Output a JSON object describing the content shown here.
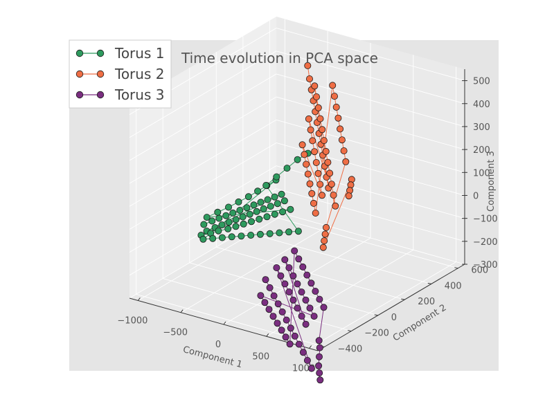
{
  "chart_data": {
    "type": "scatter",
    "projection": "3d",
    "title": "Time evolution in PCA space",
    "xlabel": "Component 1",
    "ylabel": "Component 2",
    "zlabel": "Component 3",
    "xlim": [
      -1100,
      1100
    ],
    "ylim": [
      -450,
      650
    ],
    "zlim": [
      -300,
      550
    ],
    "x_ticks": [
      -1000,
      -500,
      0,
      500,
      1000
    ],
    "y_ticks": [
      -400,
      -200,
      0,
      200,
      400,
      600
    ],
    "z_ticks": [
      -300,
      -200,
      -100,
      0,
      100,
      200,
      300,
      400,
      500
    ],
    "x_tick_labels": [
      "−1000",
      "−500",
      "0",
      "500",
      "1000"
    ],
    "y_tick_labels": [
      "−400",
      "−200",
      "0",
      "200",
      "400",
      "600"
    ],
    "z_tick_labels": [
      "−300",
      "−200",
      "−100",
      "0",
      "100",
      "200",
      "300",
      "400",
      "500"
    ],
    "grid": true,
    "legend_position": "top-left",
    "series": [
      {
        "name": "Torus 1",
        "color": "#2e9a5e",
        "points": [
          [
            -700,
            -150,
            -40
          ],
          [
            -650,
            -120,
            -30
          ],
          [
            -600,
            -100,
            -20
          ],
          [
            -550,
            -80,
            -10
          ],
          [
            -500,
            -60,
            0
          ],
          [
            -450,
            -40,
            10
          ],
          [
            -400,
            -20,
            20
          ],
          [
            -350,
            0,
            30
          ],
          [
            -300,
            20,
            40
          ],
          [
            -250,
            40,
            50
          ],
          [
            -200,
            60,
            60
          ],
          [
            -150,
            80,
            70
          ],
          [
            -650,
            -160,
            -60
          ],
          [
            -600,
            -130,
            -50
          ],
          [
            -550,
            -110,
            -40
          ],
          [
            -500,
            -90,
            -30
          ],
          [
            -450,
            -70,
            -20
          ],
          [
            -400,
            -50,
            -10
          ],
          [
            -350,
            -30,
            0
          ],
          [
            -300,
            -10,
            10
          ],
          [
            -250,
            10,
            20
          ],
          [
            -200,
            30,
            30
          ],
          [
            -150,
            50,
            40
          ],
          [
            -100,
            70,
            50
          ],
          [
            -700,
            -170,
            -80
          ],
          [
            -620,
            -150,
            -70
          ],
          [
            -560,
            -130,
            -60
          ],
          [
            -480,
            -110,
            -50
          ],
          [
            -420,
            -90,
            -40
          ],
          [
            -360,
            -70,
            -30
          ],
          [
            -300,
            -50,
            -20
          ],
          [
            -240,
            -30,
            -10
          ],
          [
            -180,
            -10,
            0
          ],
          [
            -120,
            10,
            10
          ],
          [
            -60,
            30,
            20
          ],
          [
            0,
            50,
            30
          ],
          [
            -680,
            -140,
            -10
          ],
          [
            -600,
            -110,
            10
          ],
          [
            -520,
            -80,
            30
          ],
          [
            -450,
            -50,
            50
          ],
          [
            -380,
            -20,
            70
          ],
          [
            -320,
            10,
            90
          ],
          [
            -260,
            40,
            110
          ],
          [
            -200,
            70,
            130
          ],
          [
            -660,
            -180,
            -90
          ],
          [
            -580,
            -160,
            -85
          ],
          [
            -500,
            -140,
            -80
          ],
          [
            -420,
            -120,
            -75
          ],
          [
            -340,
            -100,
            -70
          ],
          [
            -260,
            -80,
            -65
          ],
          [
            -180,
            -60,
            -60
          ],
          [
            -100,
            -40,
            -55
          ],
          [
            -20,
            -20,
            -50
          ],
          [
            60,
            0,
            -45
          ],
          [
            140,
            20,
            -40
          ],
          [
            -300,
            60,
            100
          ],
          [
            -240,
            100,
            130
          ],
          [
            -180,
            140,
            160
          ],
          [
            -120,
            180,
            190
          ],
          [
            -60,
            220,
            210
          ]
        ]
      },
      {
        "name": "Torus 2",
        "color": "#ef6e45",
        "points": [
          [
            -500,
            500,
            450
          ],
          [
            -400,
            450,
            420
          ],
          [
            -300,
            400,
            400
          ],
          [
            -200,
            350,
            380
          ],
          [
            -100,
            300,
            360
          ],
          [
            0,
            250,
            340
          ],
          [
            100,
            200,
            320
          ],
          [
            200,
            150,
            300
          ],
          [
            300,
            100,
            280
          ],
          [
            400,
            50,
            260
          ],
          [
            500,
            0,
            240
          ],
          [
            600,
            -50,
            220
          ],
          [
            -450,
            520,
            360
          ],
          [
            -350,
            470,
            340
          ],
          [
            -250,
            420,
            320
          ],
          [
            -150,
            370,
            300
          ],
          [
            -50,
            320,
            280
          ],
          [
            50,
            270,
            260
          ],
          [
            150,
            220,
            240
          ],
          [
            250,
            170,
            220
          ],
          [
            350,
            120,
            200
          ],
          [
            450,
            70,
            180
          ],
          [
            550,
            20,
            160
          ],
          [
            650,
            -30,
            140
          ],
          [
            -300,
            380,
            280
          ],
          [
            -200,
            330,
            260
          ],
          [
            -100,
            280,
            240
          ],
          [
            0,
            230,
            220
          ],
          [
            100,
            180,
            200
          ],
          [
            200,
            130,
            180
          ],
          [
            300,
            80,
            160
          ],
          [
            400,
            30,
            140
          ],
          [
            -250,
            300,
            200
          ],
          [
            -150,
            250,
            185
          ],
          [
            -50,
            200,
            170
          ],
          [
            50,
            150,
            155
          ],
          [
            150,
            100,
            140
          ],
          [
            250,
            50,
            125
          ],
          [
            350,
            0,
            110
          ],
          [
            450,
            -50,
            95
          ],
          [
            -100,
            430,
            430
          ],
          [
            0,
            380,
            410
          ],
          [
            100,
            330,
            390
          ],
          [
            200,
            280,
            370
          ],
          [
            300,
            230,
            350
          ],
          [
            400,
            180,
            330
          ],
          [
            500,
            130,
            310
          ],
          [
            600,
            80,
            290
          ],
          [
            620,
            -80,
            60
          ],
          [
            640,
            -100,
            40
          ],
          [
            660,
            -120,
            20
          ],
          [
            680,
            -140,
            0
          ],
          [
            700,
            60,
            230
          ],
          [
            720,
            40,
            215
          ],
          [
            740,
            20,
            200
          ],
          [
            760,
            0,
            185
          ]
        ]
      },
      {
        "name": "Torus 3",
        "color": "#7a2e80",
        "points": [
          [
            100,
            -200,
            -180
          ],
          [
            180,
            -220,
            -200
          ],
          [
            260,
            -240,
            -220
          ],
          [
            340,
            -260,
            -240
          ],
          [
            420,
            -280,
            -260
          ],
          [
            500,
            -300,
            -280
          ],
          [
            580,
            -320,
            -300
          ],
          [
            660,
            -340,
            -320
          ],
          [
            740,
            -360,
            -340
          ],
          [
            820,
            -380,
            -360
          ],
          [
            900,
            -400,
            -380
          ],
          [
            980,
            -420,
            -400
          ],
          [
            150,
            -150,
            -140
          ],
          [
            230,
            -170,
            -160
          ],
          [
            310,
            -190,
            -180
          ],
          [
            390,
            -210,
            -200
          ],
          [
            470,
            -230,
            -220
          ],
          [
            550,
            -250,
            -240
          ],
          [
            630,
            -270,
            -260
          ],
          [
            710,
            -290,
            -280
          ],
          [
            200,
            -120,
            -110
          ],
          [
            280,
            -140,
            -130
          ],
          [
            360,
            -160,
            -150
          ],
          [
            440,
            -180,
            -170
          ],
          [
            520,
            -200,
            -190
          ],
          [
            600,
            -220,
            -210
          ],
          [
            680,
            -240,
            -230
          ],
          [
            760,
            -260,
            -250
          ],
          [
            120,
            -250,
            -230
          ],
          [
            200,
            -270,
            -245
          ],
          [
            280,
            -290,
            -260
          ],
          [
            360,
            -310,
            -275
          ],
          [
            440,
            -330,
            -290
          ],
          [
            520,
            -350,
            -305
          ],
          [
            600,
            -370,
            -320
          ],
          [
            680,
            -390,
            -335
          ],
          [
            250,
            -80,
            -80
          ],
          [
            330,
            -100,
            -100
          ],
          [
            410,
            -120,
            -120
          ],
          [
            490,
            -140,
            -140
          ],
          [
            570,
            -160,
            -160
          ],
          [
            650,
            -180,
            -180
          ],
          [
            730,
            -200,
            -200
          ],
          [
            810,
            -220,
            -220
          ],
          [
            880,
            -300,
            -330
          ],
          [
            920,
            -320,
            -350
          ],
          [
            960,
            -350,
            -375
          ],
          [
            1000,
            -380,
            -400
          ],
          [
            1040,
            -400,
            -420
          ],
          [
            1080,
            -420,
            -440
          ]
        ]
      }
    ]
  }
}
